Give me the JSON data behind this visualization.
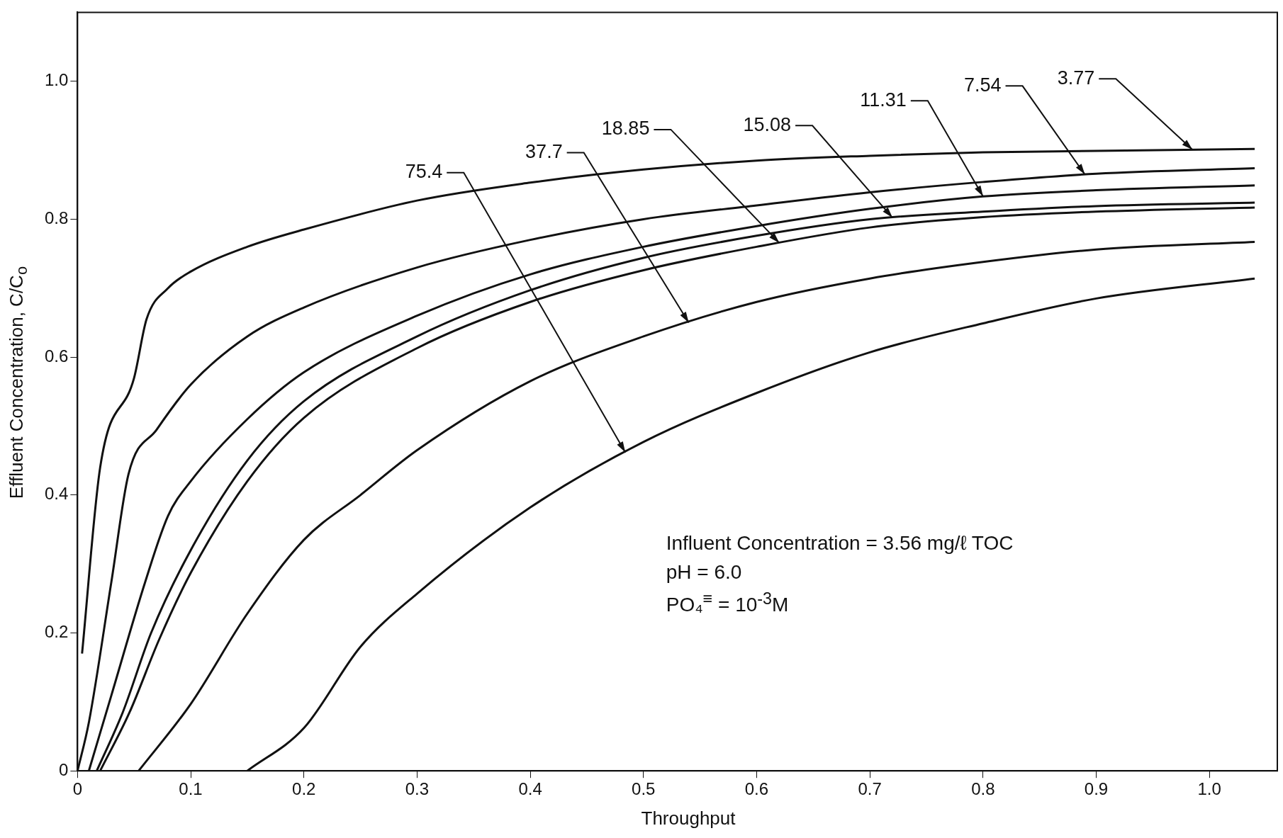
{
  "chart_data": {
    "type": "line",
    "xlabel": "Throughput",
    "ylabel": "Effluent Concentration, C/C$_{o}$",
    "xlim": [
      0,
      1.06
    ],
    "ylim": [
      0,
      1.1
    ],
    "xticks": [
      0,
      0.1,
      0.2,
      0.3,
      0.4,
      0.5,
      0.6,
      0.7,
      0.8,
      0.9,
      {
        "value": 1,
        "label": "1.0"
      }
    ],
    "yticks": [
      0,
      0.2,
      0.4,
      0.6,
      0.8,
      {
        "value": 1,
        "label": "1.0"
      }
    ],
    "grid": false,
    "legend": false,
    "marker": "none",
    "line_style": "solid",
    "annotations": [
      "Influent Concentration = 3.56 mg/ℓ TOC",
      "pH = 6.0",
      "PO₄$^{≡}$ = 10$^{-3}$M"
    ],
    "series": [
      {
        "name": "3.77",
        "color": "#111111",
        "x": [
          0.004,
          0.02,
          0.05,
          0.061,
          0.08,
          0.1,
          0.15,
          0.2,
          0.3,
          0.4,
          0.5,
          0.6,
          0.7,
          0.8,
          0.9,
          1.04
        ],
        "values": [
          0.17,
          0.44,
          0.57,
          0.655,
          0.7,
          0.724,
          0.76,
          0.785,
          0.827,
          0.853,
          0.872,
          0.885,
          0.892,
          0.897,
          0.899,
          0.902
        ]
      },
      {
        "name": "7.54",
        "color": "#111111",
        "x": [
          0,
          0.01,
          0.03,
          0.045,
          0.07,
          0.1,
          0.15,
          0.2,
          0.3,
          0.4,
          0.5,
          0.6,
          0.7,
          0.8,
          0.9,
          1.04
        ],
        "values": [
          0,
          0.07,
          0.275,
          0.43,
          0.495,
          0.56,
          0.63,
          0.672,
          0.73,
          0.77,
          0.8,
          0.82,
          0.839,
          0.854,
          0.866,
          0.874
        ]
      },
      {
        "name": "11.31",
        "color": "#111111",
        "x": [
          0.01,
          0.03,
          0.06,
          0.08,
          0.1,
          0.15,
          0.2,
          0.3,
          0.4,
          0.5,
          0.6,
          0.7,
          0.8,
          0.9,
          1.04
        ],
        "values": [
          0,
          0.11,
          0.275,
          0.37,
          0.42,
          0.51,
          0.578,
          0.66,
          0.72,
          0.76,
          0.79,
          0.815,
          0.833,
          0.842,
          0.849
        ]
      },
      {
        "name": "15.08",
        "color": "#111111",
        "x": [
          0.017,
          0.04,
          0.065,
          0.1,
          0.15,
          0.2,
          0.3,
          0.4,
          0.5,
          0.6,
          0.7,
          0.8,
          0.9,
          1.04
        ],
        "values": [
          0,
          0.085,
          0.2,
          0.32,
          0.45,
          0.536,
          0.63,
          0.697,
          0.744,
          0.776,
          0.8,
          0.811,
          0.819,
          0.824
        ]
      },
      {
        "name": "18.85",
        "color": "#111111",
        "x": [
          0.02,
          0.046,
          0.072,
          0.1,
          0.15,
          0.2,
          0.3,
          0.4,
          0.5,
          0.6,
          0.7,
          0.8,
          0.9,
          1.04
        ],
        "values": [
          0,
          0.085,
          0.19,
          0.287,
          0.42,
          0.512,
          0.613,
          0.68,
          0.726,
          0.76,
          0.788,
          0.803,
          0.811,
          0.817
        ]
      },
      {
        "name": "37.7",
        "color": "#111111",
        "x": [
          0.054,
          0.1,
          0.15,
          0.2,
          0.25,
          0.3,
          0.4,
          0.5,
          0.6,
          0.7,
          0.8,
          0.9,
          1.04
        ],
        "values": [
          0,
          0.097,
          0.228,
          0.335,
          0.4,
          0.465,
          0.565,
          0.63,
          0.68,
          0.714,
          0.738,
          0.756,
          0.767
        ]
      },
      {
        "name": "75.4",
        "color": "#111111",
        "x": [
          0.15,
          0.2,
          0.25,
          0.3,
          0.4,
          0.5,
          0.6,
          0.7,
          0.8,
          0.9,
          1.04
        ],
        "values": [
          0,
          0.062,
          0.18,
          0.257,
          0.382,
          0.477,
          0.548,
          0.607,
          0.649,
          0.685,
          0.714
        ]
      }
    ]
  }
}
